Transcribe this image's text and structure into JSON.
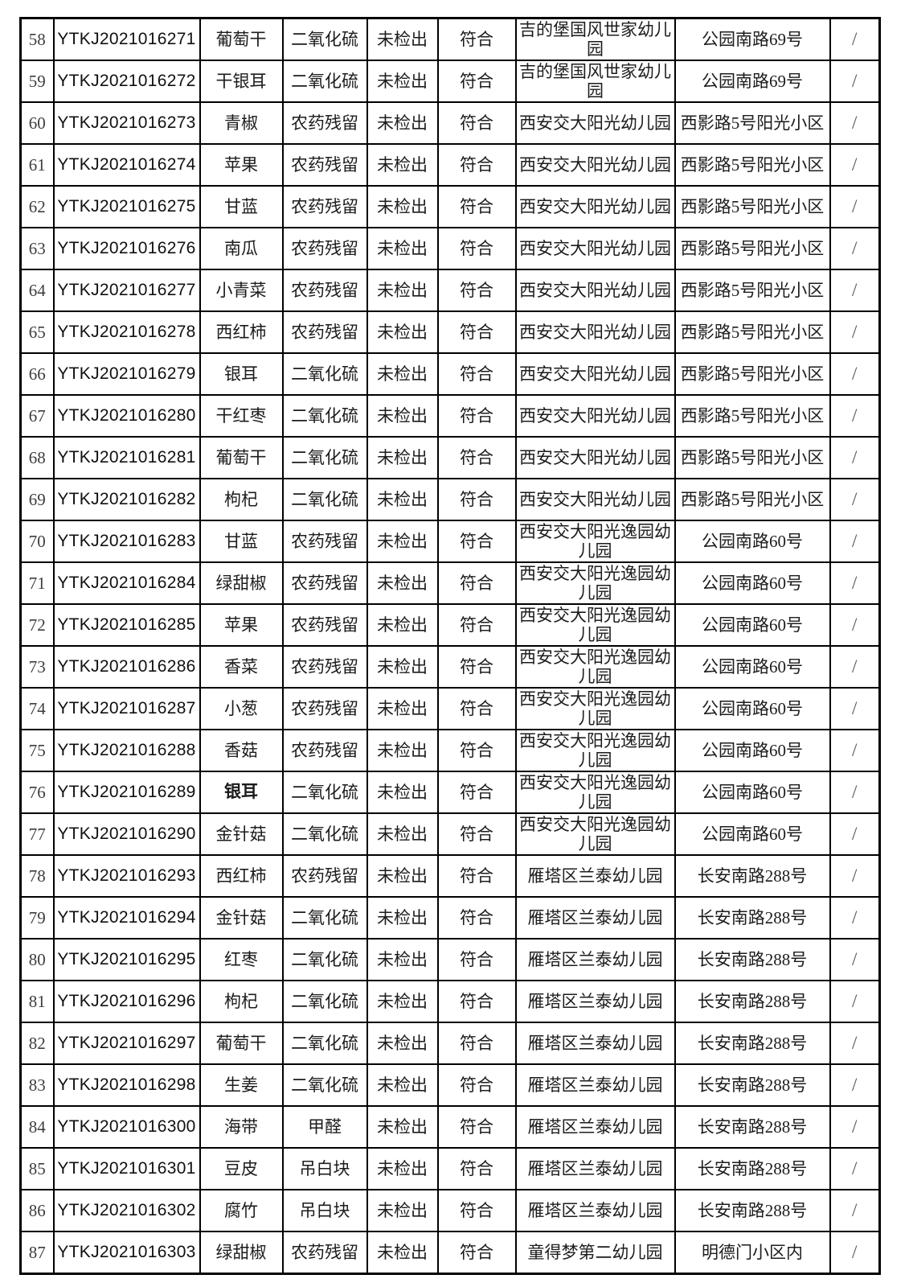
{
  "colors": {
    "background": "#ffffff",
    "border": "#000000",
    "text": "#1c1c1c",
    "seq_text": "#3d3d3d",
    "remark_text": "#555555"
  },
  "table": {
    "rows": [
      {
        "seq": "58",
        "sample_id": "YTKJ2021016271",
        "sample_name": "葡萄干",
        "name_bold": false,
        "test_item": "二氧化硫",
        "result": "未检出",
        "conclusion": "符合",
        "org": "吉的堡国风世家幼儿园",
        "address": "公园南路69号",
        "remark": "/"
      },
      {
        "seq": "59",
        "sample_id": "YTKJ2021016272",
        "sample_name": "干银耳",
        "name_bold": false,
        "test_item": "二氧化硫",
        "result": "未检出",
        "conclusion": "符合",
        "org": "吉的堡国风世家幼儿园",
        "address": "公园南路69号",
        "remark": "/"
      },
      {
        "seq": "60",
        "sample_id": "YTKJ2021016273",
        "sample_name": "青椒",
        "name_bold": false,
        "test_item": "农药残留",
        "result": "未检出",
        "conclusion": "符合",
        "org": "西安交大阳光幼儿园",
        "address": "西影路5号阳光小区",
        "remark": "/"
      },
      {
        "seq": "61",
        "sample_id": "YTKJ2021016274",
        "sample_name": "苹果",
        "name_bold": false,
        "test_item": "农药残留",
        "result": "未检出",
        "conclusion": "符合",
        "org": "西安交大阳光幼儿园",
        "address": "西影路5号阳光小区",
        "remark": "/"
      },
      {
        "seq": "62",
        "sample_id": "YTKJ2021016275",
        "sample_name": "甘蓝",
        "name_bold": false,
        "test_item": "农药残留",
        "result": "未检出",
        "conclusion": "符合",
        "org": "西安交大阳光幼儿园",
        "address": "西影路5号阳光小区",
        "remark": "/"
      },
      {
        "seq": "63",
        "sample_id": "YTKJ2021016276",
        "sample_name": "南瓜",
        "name_bold": false,
        "test_item": "农药残留",
        "result": "未检出",
        "conclusion": "符合",
        "org": "西安交大阳光幼儿园",
        "address": "西影路5号阳光小区",
        "remark": "/"
      },
      {
        "seq": "64",
        "sample_id": "YTKJ2021016277",
        "sample_name": "小青菜",
        "name_bold": false,
        "test_item": "农药残留",
        "result": "未检出",
        "conclusion": "符合",
        "org": "西安交大阳光幼儿园",
        "address": "西影路5号阳光小区",
        "remark": "/"
      },
      {
        "seq": "65",
        "sample_id": "YTKJ2021016278",
        "sample_name": "西红柿",
        "name_bold": false,
        "test_item": "农药残留",
        "result": "未检出",
        "conclusion": "符合",
        "org": "西安交大阳光幼儿园",
        "address": "西影路5号阳光小区",
        "remark": "/"
      },
      {
        "seq": "66",
        "sample_id": "YTKJ2021016279",
        "sample_name": "银耳",
        "name_bold": false,
        "test_item": "二氧化硫",
        "result": "未检出",
        "conclusion": "符合",
        "org": "西安交大阳光幼儿园",
        "address": "西影路5号阳光小区",
        "remark": "/"
      },
      {
        "seq": "67",
        "sample_id": "YTKJ2021016280",
        "sample_name": "干红枣",
        "name_bold": false,
        "test_item": "二氧化硫",
        "result": "未检出",
        "conclusion": "符合",
        "org": "西安交大阳光幼儿园",
        "address": "西影路5号阳光小区",
        "remark": "/"
      },
      {
        "seq": "68",
        "sample_id": "YTKJ2021016281",
        "sample_name": "葡萄干",
        "name_bold": false,
        "test_item": "二氧化硫",
        "result": "未检出",
        "conclusion": "符合",
        "org": "西安交大阳光幼儿园",
        "address": "西影路5号阳光小区",
        "remark": "/"
      },
      {
        "seq": "69",
        "sample_id": "YTKJ2021016282",
        "sample_name": "枸杞",
        "name_bold": false,
        "test_item": "二氧化硫",
        "result": "未检出",
        "conclusion": "符合",
        "org": "西安交大阳光幼儿园",
        "address": "西影路5号阳光小区",
        "remark": "/"
      },
      {
        "seq": "70",
        "sample_id": "YTKJ2021016283",
        "sample_name": "甘蓝",
        "name_bold": false,
        "test_item": "农药残留",
        "result": "未检出",
        "conclusion": "符合",
        "org": "西安交大阳光逸园幼儿园",
        "address": "公园南路60号",
        "remark": "/"
      },
      {
        "seq": "71",
        "sample_id": "YTKJ2021016284",
        "sample_name": "绿甜椒",
        "name_bold": false,
        "test_item": "农药残留",
        "result": "未检出",
        "conclusion": "符合",
        "org": "西安交大阳光逸园幼儿园",
        "address": "公园南路60号",
        "remark": "/"
      },
      {
        "seq": "72",
        "sample_id": "YTKJ2021016285",
        "sample_name": "苹果",
        "name_bold": false,
        "test_item": "农药残留",
        "result": "未检出",
        "conclusion": "符合",
        "org": "西安交大阳光逸园幼儿园",
        "address": "公园南路60号",
        "remark": "/"
      },
      {
        "seq": "73",
        "sample_id": "YTKJ2021016286",
        "sample_name": "香菜",
        "name_bold": false,
        "test_item": "农药残留",
        "result": "未检出",
        "conclusion": "符合",
        "org": "西安交大阳光逸园幼儿园",
        "address": "公园南路60号",
        "remark": "/"
      },
      {
        "seq": "74",
        "sample_id": "YTKJ2021016287",
        "sample_name": "小葱",
        "name_bold": false,
        "test_item": "农药残留",
        "result": "未检出",
        "conclusion": "符合",
        "org": "西安交大阳光逸园幼儿园",
        "address": "公园南路60号",
        "remark": "/"
      },
      {
        "seq": "75",
        "sample_id": "YTKJ2021016288",
        "sample_name": "香菇",
        "name_bold": false,
        "test_item": "农药残留",
        "result": "未检出",
        "conclusion": "符合",
        "org": "西安交大阳光逸园幼儿园",
        "address": "公园南路60号",
        "remark": "/"
      },
      {
        "seq": "76",
        "sample_id": "YTKJ2021016289",
        "sample_name": "银耳",
        "name_bold": true,
        "test_item": "二氧化硫",
        "result": "未检出",
        "conclusion": "符合",
        "org": "西安交大阳光逸园幼儿园",
        "address": "公园南路60号",
        "remark": "/"
      },
      {
        "seq": "77",
        "sample_id": "YTKJ2021016290",
        "sample_name": "金针菇",
        "name_bold": false,
        "test_item": "二氧化硫",
        "result": "未检出",
        "conclusion": "符合",
        "org": "西安交大阳光逸园幼儿园",
        "address": "公园南路60号",
        "remark": "/"
      },
      {
        "seq": "78",
        "sample_id": "YTKJ2021016293",
        "sample_name": "西红柿",
        "name_bold": false,
        "test_item": "农药残留",
        "result": "未检出",
        "conclusion": "符合",
        "org": "雁塔区兰泰幼儿园",
        "address": "长安南路288号",
        "remark": "/"
      },
      {
        "seq": "79",
        "sample_id": "YTKJ2021016294",
        "sample_name": "金针菇",
        "name_bold": false,
        "test_item": "二氧化硫",
        "result": "未检出",
        "conclusion": "符合",
        "org": "雁塔区兰泰幼儿园",
        "address": "长安南路288号",
        "remark": "/"
      },
      {
        "seq": "80",
        "sample_id": "YTKJ2021016295",
        "sample_name": "红枣",
        "name_bold": false,
        "test_item": "二氧化硫",
        "result": "未检出",
        "conclusion": "符合",
        "org": "雁塔区兰泰幼儿园",
        "address": "长安南路288号",
        "remark": "/"
      },
      {
        "seq": "81",
        "sample_id": "YTKJ2021016296",
        "sample_name": "枸杞",
        "name_bold": false,
        "test_item": "二氧化硫",
        "result": "未检出",
        "conclusion": "符合",
        "org": "雁塔区兰泰幼儿园",
        "address": "长安南路288号",
        "remark": "/"
      },
      {
        "seq": "82",
        "sample_id": "YTKJ2021016297",
        "sample_name": "葡萄干",
        "name_bold": false,
        "test_item": "二氧化硫",
        "result": "未检出",
        "conclusion": "符合",
        "org": "雁塔区兰泰幼儿园",
        "address": "长安南路288号",
        "remark": "/"
      },
      {
        "seq": "83",
        "sample_id": "YTKJ2021016298",
        "sample_name": "生姜",
        "name_bold": false,
        "test_item": "二氧化硫",
        "result": "未检出",
        "conclusion": "符合",
        "org": "雁塔区兰泰幼儿园",
        "address": "长安南路288号",
        "remark": "/"
      },
      {
        "seq": "84",
        "sample_id": "YTKJ2021016300",
        "sample_name": "海带",
        "name_bold": false,
        "test_item": "甲醛",
        "result": "未检出",
        "conclusion": "符合",
        "org": "雁塔区兰泰幼儿园",
        "address": "长安南路288号",
        "remark": "/"
      },
      {
        "seq": "85",
        "sample_id": "YTKJ2021016301",
        "sample_name": "豆皮",
        "name_bold": false,
        "test_item": "吊白块",
        "result": "未检出",
        "conclusion": "符合",
        "org": "雁塔区兰泰幼儿园",
        "address": "长安南路288号",
        "remark": "/"
      },
      {
        "seq": "86",
        "sample_id": "YTKJ2021016302",
        "sample_name": "腐竹",
        "name_bold": false,
        "test_item": "吊白块",
        "result": "未检出",
        "conclusion": "符合",
        "org": "雁塔区兰泰幼儿园",
        "address": "长安南路288号",
        "remark": "/"
      },
      {
        "seq": "87",
        "sample_id": "YTKJ2021016303",
        "sample_name": "绿甜椒",
        "name_bold": false,
        "test_item": "农药残留",
        "result": "未检出",
        "conclusion": "符合",
        "org": "童得梦第二幼儿园",
        "address": "明德门小区内",
        "remark": "/"
      }
    ]
  }
}
